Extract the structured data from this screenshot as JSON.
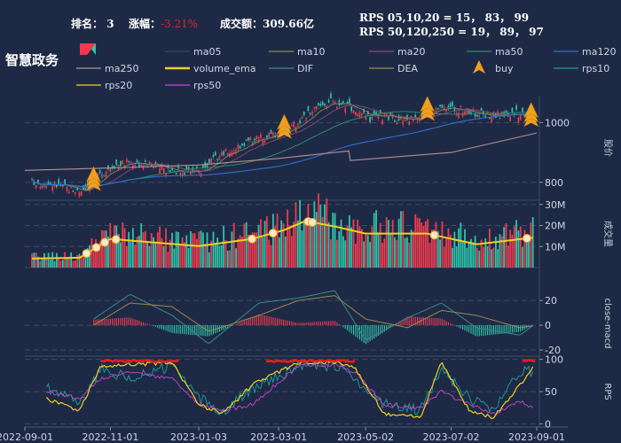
{
  "header": {
    "rank_label": "排名：",
    "rank_value": "3",
    "change_label": "涨幅：",
    "change_value": "-3.21%",
    "turnover_label": "成交额：",
    "turnover_value": "309.66亿",
    "rps_short": "RPS 05,10,20 = 15， 83， 99",
    "rps_long": "RPS 50,120,250 = 19， 89， 97"
  },
  "stock_name": "智慧政务",
  "colors": {
    "background": "#1e2a45",
    "up": "#f03a4f",
    "down": "#2ec3a8",
    "ma05": "#2a4a6a",
    "ma10": "#8a8a55",
    "ma20": "#8a4a7a",
    "ma50": "#2e8a6a",
    "ma120": "#2f6fd0",
    "ma250": "#b89090",
    "volume_ema": "#f0d020",
    "dif": "#3a8a8a",
    "dea": "#9a8a50",
    "buy": "#f0a020",
    "rps10": "#1aa0a0",
    "rps20": "#f0d020",
    "rps50": "#d040d0",
    "rps_high": "#ff1a1a"
  },
  "legend": [
    {
      "key": "kline",
      "label": "",
      "type": "candle"
    },
    {
      "key": "ma05",
      "label": "ma05",
      "type": "line"
    },
    {
      "key": "ma10",
      "label": "ma10",
      "type": "line"
    },
    {
      "key": "ma20",
      "label": "ma20",
      "type": "line"
    },
    {
      "key": "ma50",
      "label": "ma50",
      "type": "line"
    },
    {
      "key": "ma120",
      "label": "ma120",
      "type": "line"
    },
    {
      "key": "ma250",
      "label": "ma250",
      "type": "line"
    },
    {
      "key": "volume_ema",
      "label": "volume_ema",
      "type": "thick"
    },
    {
      "key": "dif",
      "label": "DIF",
      "type": "line"
    },
    {
      "key": "dea",
      "label": "DEA",
      "type": "line"
    },
    {
      "key": "buy",
      "label": "buy",
      "type": "marker"
    },
    {
      "key": "rps10",
      "label": "rps10",
      "type": "line"
    },
    {
      "key": "rps20",
      "label": "rps20",
      "type": "line"
    },
    {
      "key": "rps50",
      "label": "rps50",
      "type": "line"
    }
  ],
  "chart_data": {
    "type": "line",
    "x_ticks": [
      "2022-09-01",
      "2022-11-01",
      "2023-01-03",
      "2023-03-01",
      "2023-05-02",
      "2023-07-02",
      "2023-09-01"
    ],
    "x_range": [
      "2022-09-01",
      "2023-09-01"
    ],
    "panels": [
      {
        "name": "price",
        "ylabel": "股价",
        "y_ticks": [
          800,
          1000
        ],
        "ylim": [
          740,
          1090
        ],
        "series": [
          {
            "name": "close",
            "x": [
              "2022-09-01",
              "2022-09-20",
              "2022-10-10",
              "2022-10-20",
              "2022-11-01",
              "2022-11-15",
              "2022-12-01",
              "2022-12-15",
              "2023-01-03",
              "2023-01-20",
              "2023-02-10",
              "2023-02-25",
              "2023-03-10",
              "2023-03-25",
              "2023-04-05",
              "2023-04-20",
              "2023-05-02",
              "2023-05-15",
              "2023-06-01",
              "2023-06-15",
              "2023-07-02",
              "2023-07-20",
              "2023-08-01",
              "2023-08-20",
              "2023-09-01"
            ],
            "y": [
              805,
              795,
              770,
              805,
              855,
              870,
              855,
              840,
              835,
              895,
              945,
              960,
              985,
              1040,
              1070,
              1060,
              1010,
              1020,
              1010,
              1040,
              1050,
              1030,
              1025,
              1030,
              1035
            ]
          },
          {
            "name": "ma250",
            "x": [
              "2022-09-01",
              "2022-11-01",
              "2023-01-03",
              "2023-03-01",
              "2023-04-20",
              "2023-04-21",
              "2023-07-02",
              "2023-09-01"
            ],
            "y": [
              840,
              848,
              858,
              880,
              905,
              873,
              900,
              965
            ]
          }
        ],
        "buy_signals": [
          {
            "x": "2022-10-20",
            "y": 790
          },
          {
            "x": "2023-03-05",
            "y": 965
          },
          {
            "x": "2023-06-15",
            "y": 1025
          },
          {
            "x": "2023-08-28",
            "y": 1005
          }
        ]
      },
      {
        "name": "volume",
        "ylabel": "成交量",
        "y_ticks": [
          "10M",
          "20M",
          "30M"
        ],
        "ylim": [
          0,
          32
        ],
        "unit": "M"
      },
      {
        "name": "macd",
        "ylabel": "close-macd",
        "y_ticks": [
          -20,
          0,
          20
        ],
        "ylim": [
          -25,
          28
        ]
      },
      {
        "name": "rps",
        "ylabel": "RPS",
        "y_ticks": [
          0,
          50,
          100
        ],
        "ylim": [
          -5,
          105
        ]
      }
    ]
  }
}
